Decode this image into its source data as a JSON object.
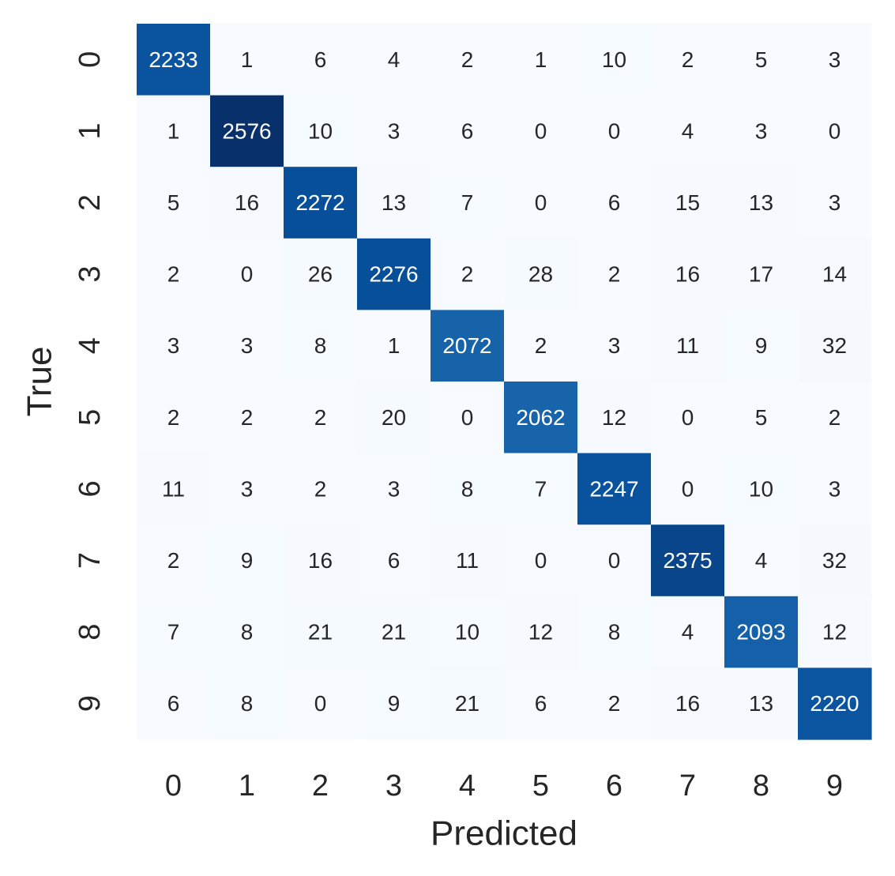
{
  "chart_data": {
    "type": "heatmap",
    "title": "",
    "xlabel": "Predicted",
    "ylabel": "True",
    "x_categories": [
      "0",
      "1",
      "2",
      "3",
      "4",
      "5",
      "6",
      "7",
      "8",
      "9"
    ],
    "y_categories": [
      "0",
      "1",
      "2",
      "3",
      "4",
      "5",
      "6",
      "7",
      "8",
      "9"
    ],
    "values": [
      [
        2233,
        1,
        6,
        4,
        2,
        1,
        10,
        2,
        5,
        3
      ],
      [
        1,
        2576,
        10,
        3,
        6,
        0,
        0,
        4,
        3,
        0
      ],
      [
        5,
        16,
        2272,
        13,
        7,
        0,
        6,
        15,
        13,
        3
      ],
      [
        2,
        0,
        26,
        2276,
        2,
        28,
        2,
        16,
        17,
        14
      ],
      [
        3,
        3,
        8,
        1,
        2072,
        2,
        3,
        11,
        9,
        32
      ],
      [
        2,
        2,
        2,
        20,
        0,
        2062,
        12,
        0,
        5,
        2
      ],
      [
        11,
        3,
        2,
        3,
        8,
        7,
        2247,
        0,
        10,
        3
      ],
      [
        2,
        9,
        16,
        6,
        11,
        0,
        0,
        2375,
        4,
        32
      ],
      [
        7,
        8,
        21,
        21,
        10,
        12,
        8,
        4,
        2093,
        12
      ],
      [
        6,
        8,
        0,
        9,
        21,
        6,
        2,
        16,
        13,
        2220
      ]
    ],
    "colormap": "Blues",
    "colorbar": false,
    "annotations": true,
    "grid": false
  }
}
